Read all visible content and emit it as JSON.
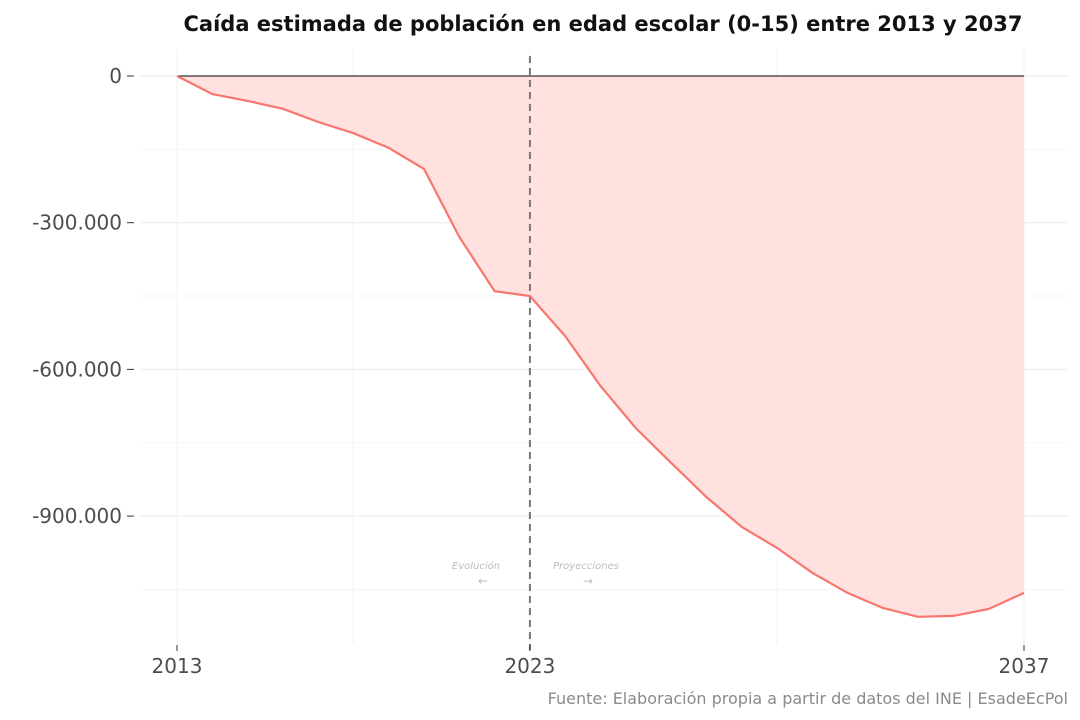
{
  "chart_data": {
    "type": "area",
    "title": "Caída estimada de población en edad escolar (0-15) entre 2013 y 2037",
    "caption": "Fuente: Elaboración propia a partir de datos del INE | EsadeEcPol",
    "xlabel": "",
    "ylabel": "",
    "x": [
      2013,
      2014,
      2015,
      2016,
      2017,
      2018,
      2019,
      2020,
      2021,
      2022,
      2023,
      2024,
      2025,
      2026,
      2027,
      2028,
      2029,
      2030,
      2031,
      2032,
      2033,
      2034,
      2035,
      2036,
      2037
    ],
    "values": [
      0,
      -37000,
      -51000,
      -67000,
      -94000,
      -117000,
      -147000,
      -190000,
      -329000,
      -440000,
      -450000,
      -532000,
      -634000,
      -720000,
      -791000,
      -861000,
      -922000,
      -965000,
      -1016000,
      -1057000,
      -1088000,
      -1106000,
      -1104000,
      -1090000,
      -1057000
    ],
    "xlim": [
      2013,
      2037
    ],
    "ylim": [
      -1150000,
      0
    ],
    "x_ticks": [
      2013,
      2023,
      2037
    ],
    "x_tick_labels": [
      "2013",
      "2023",
      "2037"
    ],
    "y_ticks": [
      0,
      -300000,
      -600000,
      -900000
    ],
    "y_tick_labels": [
      "0",
      "-300.000",
      "-600.000",
      "-900.000"
    ],
    "grid": true,
    "vline": {
      "x": 2023,
      "style": "dashed",
      "color": "#777777"
    },
    "annotations": [
      {
        "text": "Evolución",
        "arrow": "←"
      },
      {
        "text": "Proyecciones",
        "arrow": "→"
      }
    ],
    "colors": {
      "line": "#f8766d",
      "fill": "#ffe2e0",
      "zero_line": "#000000",
      "grid": "#f0f0f0"
    }
  }
}
